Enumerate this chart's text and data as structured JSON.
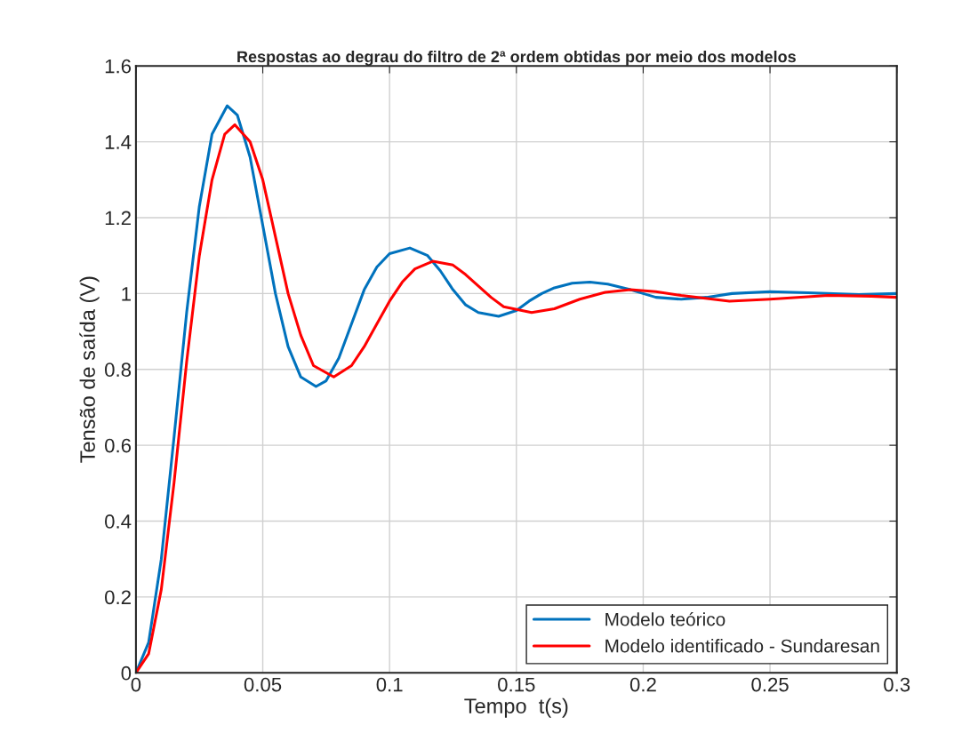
{
  "chart_data": {
    "type": "line",
    "title": "Respostas ao degrau do filtro de 2ª ordem obtidas por meio dos modelos",
    "xlabel": "Tempo  t(s)",
    "ylabel": "Tensão de saída (V)",
    "xlim": [
      0,
      0.3
    ],
    "xticks": [
      0,
      0.05,
      0.1,
      0.15,
      0.2,
      0.25,
      0.3
    ],
    "ylim": [
      0,
      1.6
    ],
    "yticks": [
      0,
      0.2,
      0.4,
      0.6,
      0.8,
      1,
      1.2,
      1.4,
      1.6
    ],
    "grid": true,
    "legend": "bottom right",
    "line_style": "solid",
    "marker": "none",
    "series": [
      {
        "name": "Modelo teórico",
        "color": "#0072bd",
        "x": [
          0,
          0.005,
          0.01,
          0.015,
          0.02,
          0.025,
          0.03,
          0.036,
          0.04,
          0.045,
          0.05,
          0.055,
          0.06,
          0.065,
          0.071,
          0.075,
          0.08,
          0.085,
          0.09,
          0.095,
          0.1,
          0.108,
          0.115,
          0.12,
          0.125,
          0.13,
          0.135,
          0.143,
          0.15,
          0.155,
          0.16,
          0.165,
          0.172,
          0.179,
          0.186,
          0.195,
          0.205,
          0.215,
          0.225,
          0.235,
          0.25,
          0.265,
          0.285,
          0.3
        ],
        "values": [
          0,
          0.08,
          0.3,
          0.62,
          0.95,
          1.23,
          1.42,
          1.495,
          1.47,
          1.36,
          1.18,
          1.0,
          0.86,
          0.78,
          0.755,
          0.77,
          0.83,
          0.92,
          1.01,
          1.07,
          1.105,
          1.12,
          1.1,
          1.06,
          1.01,
          0.97,
          0.95,
          0.94,
          0.955,
          0.98,
          1.0,
          1.015,
          1.027,
          1.03,
          1.025,
          1.01,
          0.99,
          0.985,
          0.99,
          1.0,
          1.005,
          1.002,
          0.997,
          1.0
        ]
      },
      {
        "name": "Modelo identificado - Sundaresan",
        "color": "#ff0000",
        "x": [
          0,
          0.005,
          0.01,
          0.015,
          0.02,
          0.025,
          0.03,
          0.035,
          0.039,
          0.045,
          0.05,
          0.055,
          0.06,
          0.065,
          0.07,
          0.078,
          0.085,
          0.09,
          0.095,
          0.1,
          0.105,
          0.11,
          0.117,
          0.125,
          0.13,
          0.135,
          0.14,
          0.145,
          0.156,
          0.165,
          0.175,
          0.185,
          0.195,
          0.205,
          0.215,
          0.234,
          0.25,
          0.273,
          0.29,
          0.3
        ],
        "values": [
          0,
          0.05,
          0.22,
          0.5,
          0.82,
          1.1,
          1.3,
          1.42,
          1.445,
          1.4,
          1.3,
          1.15,
          1.0,
          0.89,
          0.81,
          0.78,
          0.81,
          0.86,
          0.92,
          0.98,
          1.03,
          1.065,
          1.085,
          1.075,
          1.05,
          1.02,
          0.99,
          0.965,
          0.95,
          0.96,
          0.985,
          1.003,
          1.01,
          1.005,
          0.995,
          0.98,
          0.985,
          0.995,
          0.993,
          0.99
        ]
      }
    ]
  }
}
